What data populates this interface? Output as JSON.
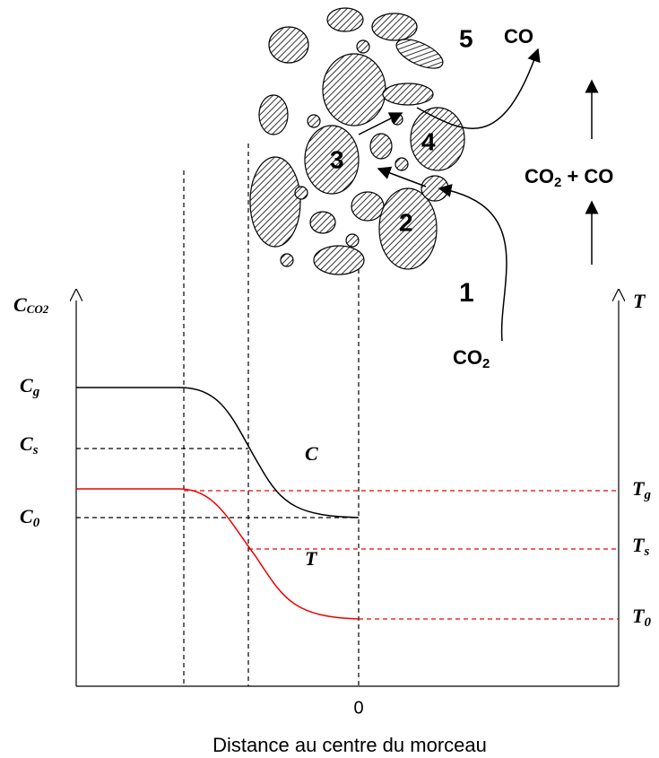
{
  "labels": {
    "five": "5",
    "co_top": "CO",
    "mix": [
      "CO",
      "2",
      " + CO"
    ],
    "one": "1",
    "two": "2",
    "three": "3",
    "four": "4",
    "co2": [
      "CO",
      "2"
    ],
    "y_left": [
      "C",
      "CO2"
    ],
    "y_right": "T",
    "cg": [
      "C",
      "g"
    ],
    "cs": [
      "C",
      "s"
    ],
    "c0": [
      "C",
      "0"
    ],
    "tg": [
      "T",
      "g"
    ],
    "ts": [
      "T",
      "s"
    ],
    "t0": [
      "T",
      "0"
    ],
    "curve_c": "C",
    "curve_t": "T",
    "x_zero": "0",
    "x_title": "Distance au centre du morceau"
  }
}
